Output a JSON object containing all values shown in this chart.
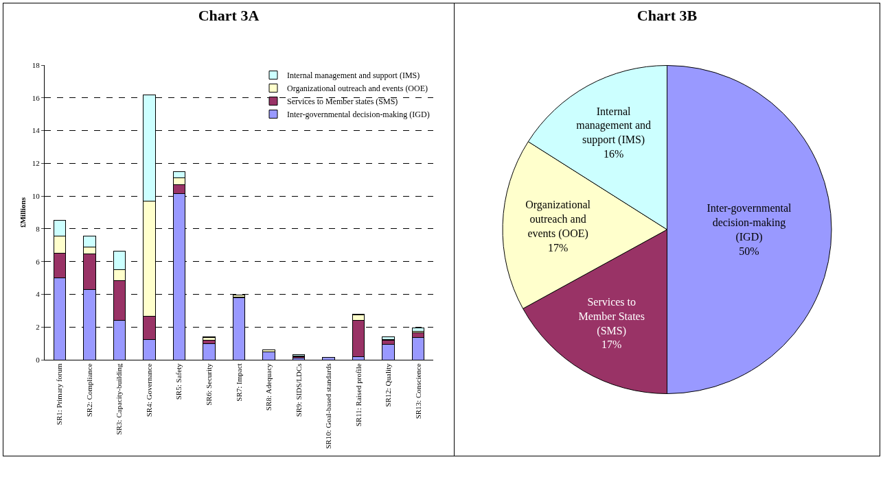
{
  "chart_data": [
    {
      "type": "bar",
      "title": "Chart 3A",
      "ylabel": "£Millions",
      "stacked": true,
      "categories": [
        "SR1: Primary forum",
        "SR2: Compliance",
        "SR3: Capacity-building",
        "SR4: Governance",
        "SR5: Safety",
        "SR6: Security",
        "SR7: Impact",
        "SR8: Adequacy",
        "SR9: SIDS/LDCs",
        "SR10: Goal-based standards",
        "SR11: Raised profile",
        "SR12: Quality",
        "SR13: Conscience"
      ],
      "series": [
        {
          "name": "Inter-governmental decision-making (IGD)",
          "color": "#9999ff",
          "values": [
            5.0,
            4.3,
            2.4,
            1.25,
            10.15,
            1.0,
            3.8,
            0.5,
            0.1,
            0.15,
            0.2,
            0.95,
            1.35
          ]
        },
        {
          "name": "Services to Member states (SMS)",
          "color": "#993366",
          "values": [
            1.5,
            2.15,
            2.45,
            1.4,
            0.55,
            0.2,
            0.05,
            null,
            0.1,
            null,
            2.2,
            0.25,
            0.3
          ]
        },
        {
          "name": "Organizational outreach and events (OOE)",
          "color": "#ffffcc",
          "values": [
            1.05,
            0.45,
            0.65,
            7.05,
            0.4,
            0.15,
            0.1,
            0.1,
            0.05,
            null,
            0.35,
            0.05,
            0.1
          ]
        },
        {
          "name": "Internal management and support (IMS)",
          "color": "#ccffff",
          "values": [
            0.95,
            0.65,
            1.15,
            6.5,
            0.4,
            0.05,
            null,
            null,
            0.05,
            null,
            0.05,
            0.15,
            0.2
          ]
        }
      ],
      "ylim": [
        0,
        18
      ],
      "yticks": [
        0,
        2,
        4,
        6,
        8,
        10,
        12,
        14,
        16,
        18
      ],
      "grid": "y",
      "legend": "top right"
    },
    {
      "type": "pie",
      "title": "Chart 3B",
      "categories": [
        "Inter-governmental decision-making (IGD)",
        "Services to Member States (SMS)",
        "Organizational outreach and events (OOE)",
        "Internal management and support (IMS)"
      ],
      "values": [
        50,
        17,
        17,
        16
      ],
      "value_labels": [
        "50%",
        "17%",
        "17%",
        "16%"
      ],
      "colors": [
        "#9999ff",
        "#993366",
        "#ffffcc",
        "#ccffff"
      ]
    }
  ]
}
